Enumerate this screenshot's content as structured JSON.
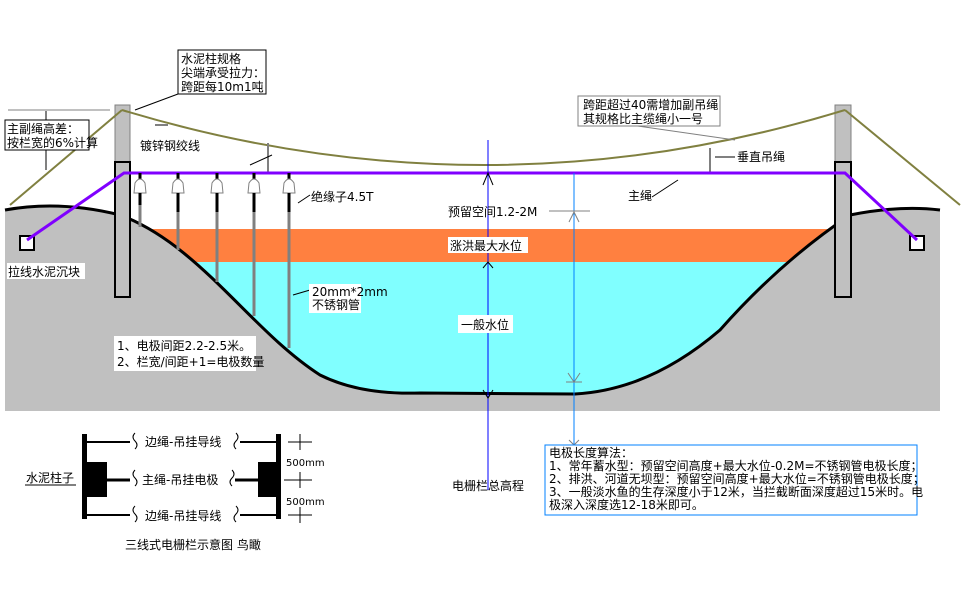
{
  "labels": {
    "post_spec": [
      "水泥柱规格",
      "尖端承受拉力：",
      "跨距每10m1吨"
    ],
    "height_diff": [
      "主副绳高差：",
      "按栏宽的6%计算"
    ],
    "galvanized_wire": "镀锌钢绞线",
    "sub_rope_note": [
      "跨距超过40需增加副吊绳",
      "其规格比主缆绳小一号"
    ],
    "vertical_hanger": "垂直吊绳",
    "main_rope": "主绳",
    "insulator": "绝缘子4.5T",
    "reserved_space": "预留空间1.2-2M",
    "flood_level": "涨洪最大水位",
    "normal_level": "一般水位",
    "anchor_block": "拉线水泥沉块",
    "pipe": [
      "20mm*2mm",
      "不锈钢管"
    ],
    "spacing_notes": [
      "1、电极间距2.2-2.5米。",
      "2、栏宽/间距+1=电极数量"
    ],
    "total_height": "电栅栏总高程"
  },
  "algorithm": {
    "lines": [
      "电极长度算法：",
      "1、常年蓄水型：预留空间高度+最大水位-0.2M=不锈钢管电极长度；",
      "2、排洪、河道无坝型：预留空间高度+最大水位=不锈钢管电极长度；",
      "3、一般淡水鱼的生存深度小于12米，当拦截断面深度超过15米时。电",
      "极深入深度选12-18米即可。"
    ]
  },
  "plan_view": {
    "post_label": "水泥柱子",
    "side_rope": "边绳-吊挂导线",
    "main_rope": "主绳-吊挂电极",
    "spacing1": "500mm",
    "spacing2": "500mm",
    "caption": "三线式电栅栏示意图  鸟瞰"
  },
  "colors": {
    "ground": "#c0c0c0",
    "flood_band": "#ff8040",
    "water": "#80ffff",
    "main_rope": "#8000ff",
    "catenary": "#808040",
    "dimension_line": "#0000ff",
    "algorithm_border": "#0080ff"
  }
}
